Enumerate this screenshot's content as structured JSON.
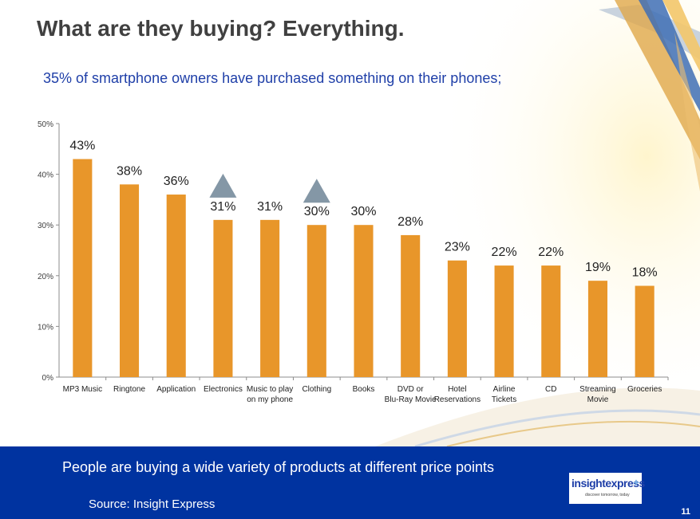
{
  "slide": {
    "title": "What are they buying? Everything.",
    "subtitle": "35% of smartphone owners have purchased something on their phones;",
    "page_number": "11"
  },
  "footer": {
    "message": "People are buying a wide variety of products at different price points",
    "source": "Source: Insight Express",
    "logo_name": "insightexpress",
    "logo_tagline": "discover tomorrow, today"
  },
  "colors": {
    "bar": "#e8962a",
    "marker": "#8497a6",
    "footer": "#0033a0",
    "subtitle": "#1f3fa8"
  },
  "chart_data": {
    "type": "bar",
    "categories": [
      [
        "MP3 Music"
      ],
      [
        "Ringtone"
      ],
      [
        "Application"
      ],
      [
        "Electronics"
      ],
      [
        "Music to play",
        "on my phone"
      ],
      [
        "Clothing"
      ],
      [
        "Books"
      ],
      [
        "DVD or",
        "Blu-Ray Movie"
      ],
      [
        "Hotel",
        "Reservations"
      ],
      [
        "Airline",
        "Tickets"
      ],
      [
        "CD"
      ],
      [
        "Streaming",
        "Movie"
      ],
      [
        "Groceries"
      ]
    ],
    "values": [
      43,
      38,
      36,
      31,
      31,
      30,
      30,
      28,
      23,
      22,
      22,
      19,
      18
    ],
    "data_labels": [
      "43%",
      "38%",
      "36%",
      "31%",
      "31%",
      "30%",
      "30%",
      "28%",
      "23%",
      "22%",
      "22%",
      "19%",
      "18%"
    ],
    "y_ticks": [
      "0%",
      "10%",
      "20%",
      "30%",
      "40%",
      "50%"
    ],
    "ylim": [
      0,
      50
    ],
    "highlighted": [
      "Electronics",
      "Clothing"
    ],
    "grid": false,
    "legend": "none"
  }
}
